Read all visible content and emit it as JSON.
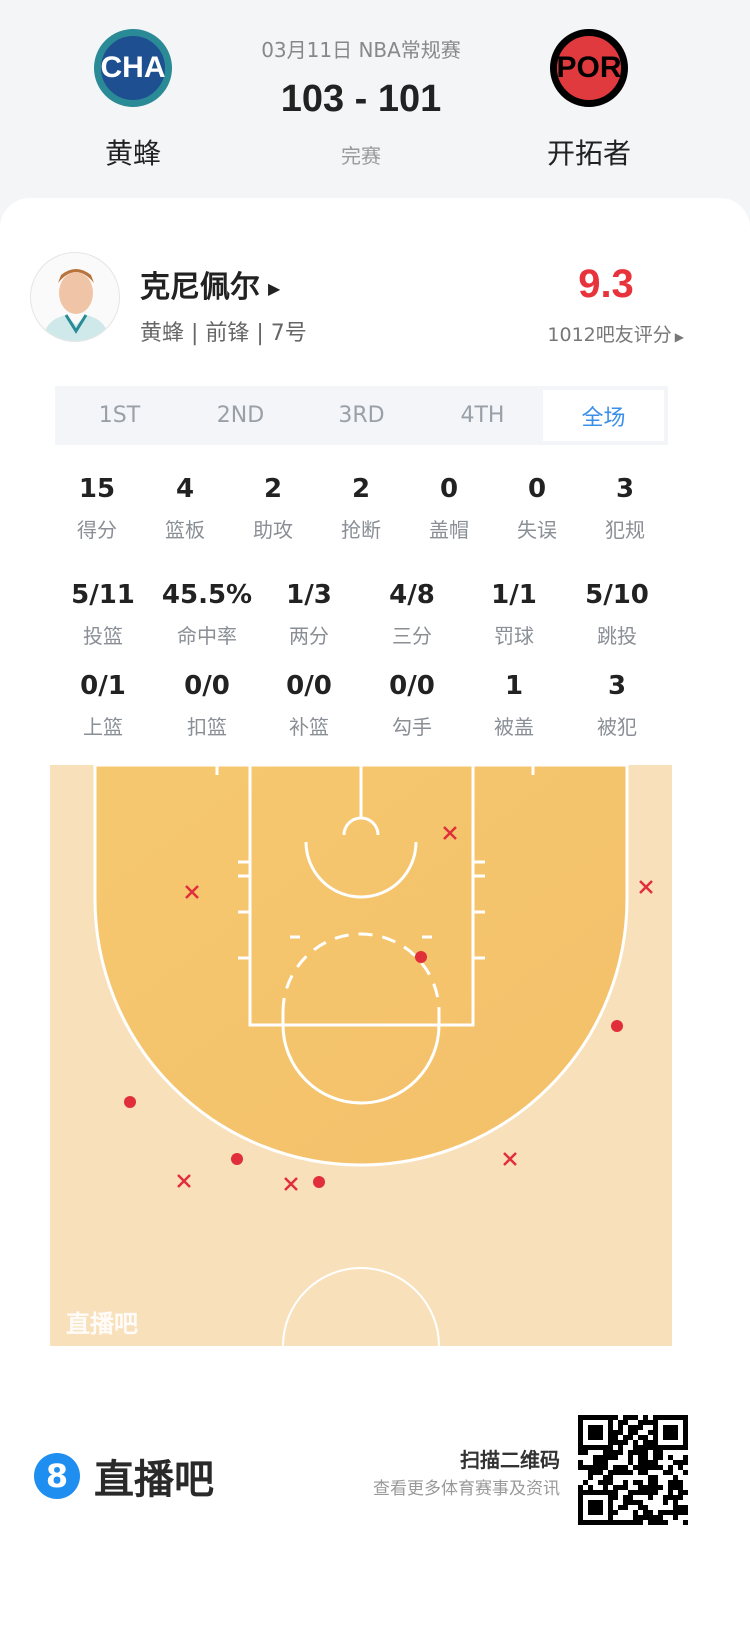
{
  "header": {
    "date_league": "03月11日 NBA常规赛",
    "score": "103 - 101",
    "status": "完赛",
    "home": {
      "abbr": "CHA",
      "name": "黄蜂",
      "color": "#1d4f91",
      "ring": "#2a8a96"
    },
    "away": {
      "abbr": "POR",
      "name": "开拓者",
      "color": "#e03a3e",
      "ring": "#000000"
    }
  },
  "player": {
    "name": "克尼佩尔",
    "info": "黄蜂 | 前锋 | 7号",
    "rating": "9.3",
    "rating_label": "1012吧友评分",
    "rating_color": "#e8323c"
  },
  "tabs": [
    {
      "label": "1ST"
    },
    {
      "label": "2ND"
    },
    {
      "label": "3RD"
    },
    {
      "label": "4TH"
    },
    {
      "label": "全场",
      "active": true
    }
  ],
  "stats_row1": [
    {
      "value": "15",
      "label": "得分"
    },
    {
      "value": "4",
      "label": "篮板"
    },
    {
      "value": "2",
      "label": "助攻"
    },
    {
      "value": "2",
      "label": "抢断"
    },
    {
      "value": "0",
      "label": "盖帽"
    },
    {
      "value": "0",
      "label": "失误"
    },
    {
      "value": "3",
      "label": "犯规"
    }
  ],
  "stats_row2": [
    {
      "value": "5/11",
      "label": "投篮"
    },
    {
      "value": "45.5%",
      "label": "命中率"
    },
    {
      "value": "1/3",
      "label": "两分"
    },
    {
      "value": "4/8",
      "label": "三分"
    },
    {
      "value": "1/1",
      "label": "罚球"
    },
    {
      "value": "5/10",
      "label": "跳投"
    }
  ],
  "stats_row3": [
    {
      "value": "0/1",
      "label": "上篮"
    },
    {
      "value": "0/0",
      "label": "扣篮"
    },
    {
      "value": "0/0",
      "label": "补篮"
    },
    {
      "value": "0/0",
      "label": "勾手"
    },
    {
      "value": "1",
      "label": "被盖"
    },
    {
      "value": "3",
      "label": "被犯"
    }
  ],
  "shot_chart": {
    "watermark": "直播吧",
    "made_color": "#e02f3a",
    "shots": [
      "missed",
      "missed",
      "missed",
      "made",
      "made",
      "made",
      "made",
      "missed",
      "missed",
      "made",
      "missed"
    ]
  },
  "footer": {
    "brand": "直播吧",
    "brand_icon": "8",
    "scan_title": "扫描二维码",
    "scan_sub": "查看更多体育赛事及资讯"
  }
}
